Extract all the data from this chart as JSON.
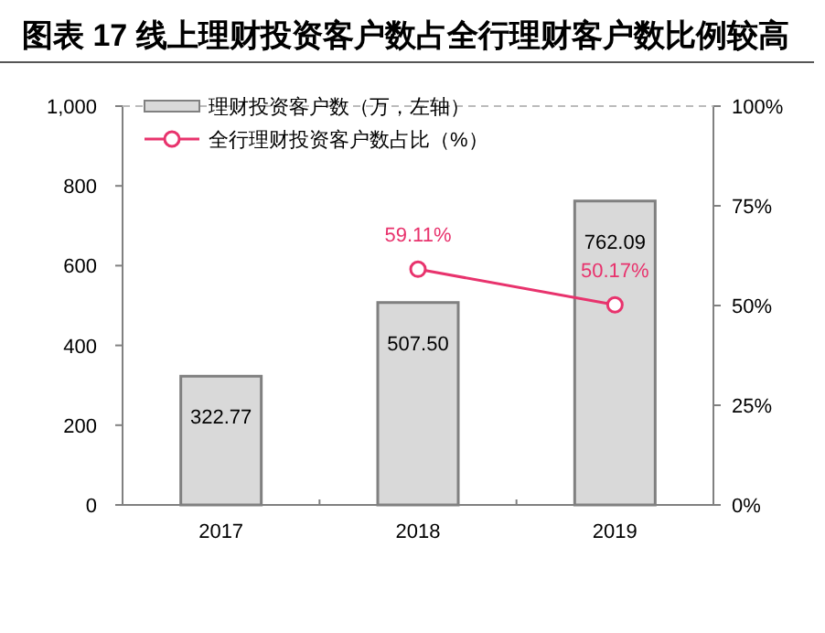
{
  "chart_data": {
    "type": "bar",
    "title": "图表 17 线上理财投资客户数占全行理财客户数比例较高",
    "categories": [
      "2017",
      "2018",
      "2019"
    ],
    "series": [
      {
        "name": "理财投资客户数（万，左轴）",
        "color": "#d9d9d9",
        "values": [
          322.77,
          507.5,
          762.09
        ],
        "value_labels": [
          "322.77",
          "507.50",
          "762.09"
        ]
      },
      {
        "name": "全行理财投资客户数占比（%）",
        "type": "line",
        "axis": "y2",
        "color": "#e8336d",
        "marker": "circle",
        "values": [
          null,
          59.11,
          50.17
        ],
        "value_labels": [
          null,
          "59.11%",
          "50.17%"
        ]
      }
    ],
    "ylim": [
      0,
      1000
    ],
    "yticks": [
      0,
      200,
      400,
      600,
      800,
      {
        "value": 1000,
        "label": "1,000"
      }
    ],
    "y2lim": [
      0,
      100
    ],
    "y2ticks": [
      {
        "value": 0,
        "label": "0%"
      },
      {
        "value": 25,
        "label": "25%"
      },
      {
        "value": 50,
        "label": "50%"
      },
      {
        "value": 75,
        "label": "75%"
      },
      {
        "value": 100,
        "label": "100%"
      }
    ],
    "legend": "top left"
  }
}
